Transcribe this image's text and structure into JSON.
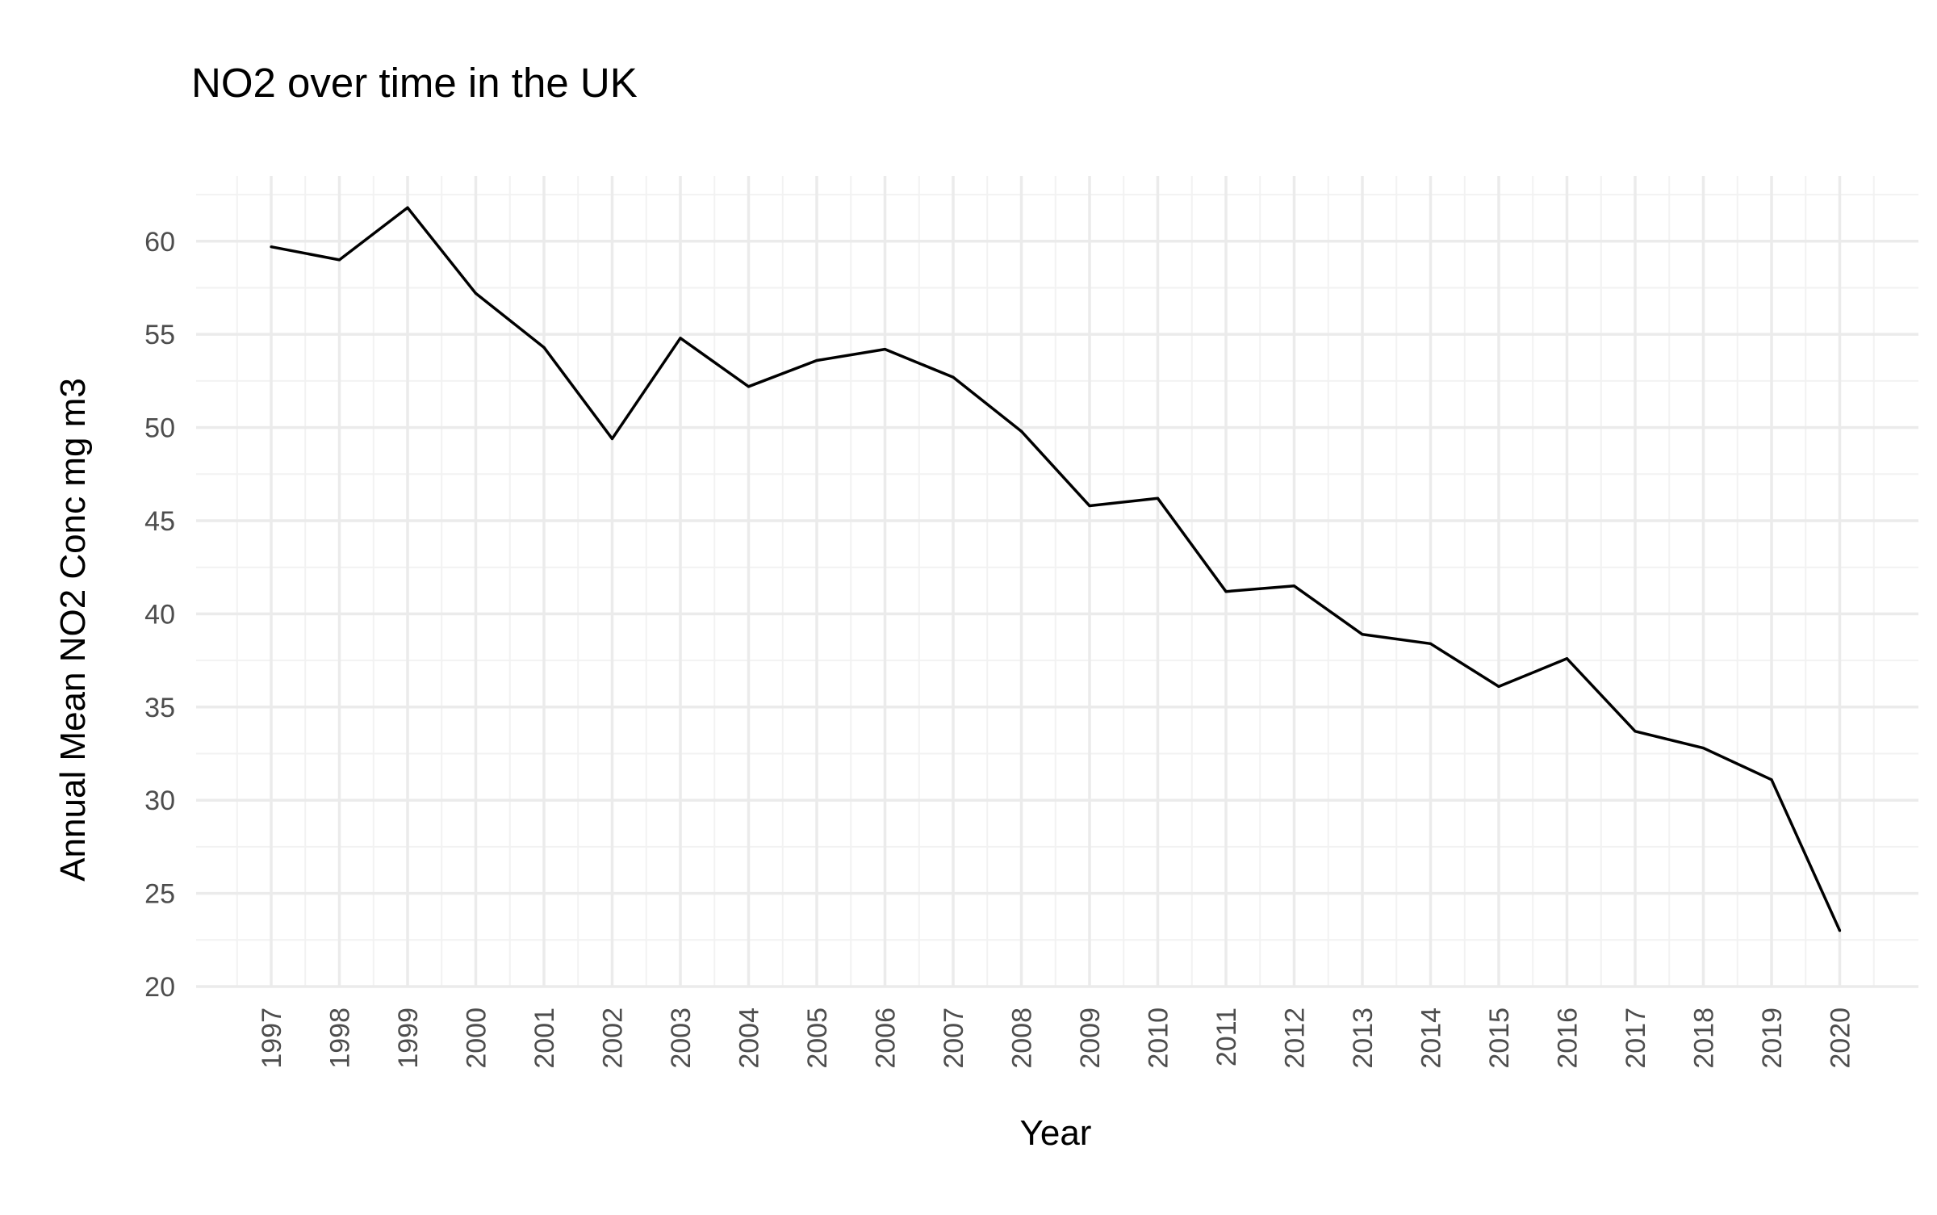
{
  "chart_data": {
    "type": "line",
    "title": "NO2 over time in the UK",
    "xlabel": "Year",
    "ylabel": "Annual Mean NO2 Conc mg m3",
    "x": [
      "1997",
      "1998",
      "1999",
      "2000",
      "2001",
      "2002",
      "2003",
      "2004",
      "2005",
      "2006",
      "2007",
      "2008",
      "2009",
      "2010",
      "2011",
      "2012",
      "2013",
      "2014",
      "2015",
      "2016",
      "2017",
      "2018",
      "2019",
      "2020"
    ],
    "series": [
      {
        "values": [
          59.7,
          59.0,
          61.8,
          57.2,
          54.3,
          49.4,
          54.8,
          52.2,
          53.6,
          54.2,
          52.7,
          49.8,
          45.8,
          46.2,
          41.2,
          41.5,
          38.9,
          38.4,
          36.1,
          37.6,
          33.7,
          32.8,
          31.1,
          23.0
        ],
        "color": "#000000"
      }
    ],
    "yticks": [
      20,
      25,
      30,
      35,
      40,
      45,
      50,
      55,
      60
    ],
    "ylim": [
      20,
      63.5
    ],
    "grid": true,
    "legend": "none",
    "colors": {
      "grid_major": "#ebebeb",
      "grid_minor": "#f2f2f2",
      "line": "#000000",
      "tick_text": "#4d4d4d"
    }
  }
}
